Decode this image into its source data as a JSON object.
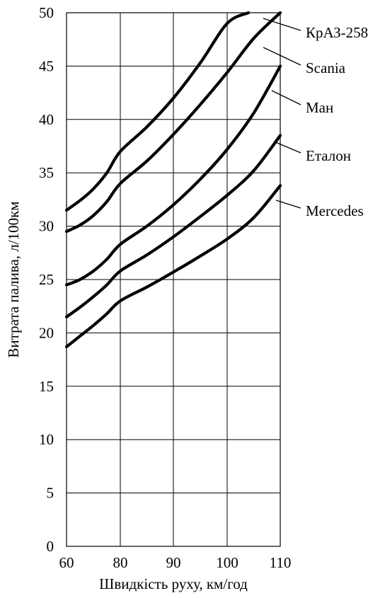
{
  "chart_data": {
    "type": "line",
    "xlabel": "Швидкість руху, км/год",
    "ylabel": "Витрата палива, л/100км",
    "xlim": [
      60,
      110
    ],
    "ylim": [
      0,
      50
    ],
    "x_ticks": [
      "60",
      "80",
      "90",
      "100",
      "110"
    ],
    "y_ticks": [
      "0",
      "5",
      "10",
      "15",
      "20",
      "25",
      "30",
      "35",
      "40",
      "45",
      "50"
    ],
    "grid": true,
    "legend": "inline labels at right",
    "series": [
      {
        "name": "КрАЗ-258",
        "x": [
          60,
          65,
          70,
          75,
          80,
          85,
          90,
          95,
          100,
          104
        ],
        "y": [
          31.5,
          32.4,
          33.5,
          35.0,
          37.0,
          39.3,
          42.0,
          45.3,
          49.0,
          50.0
        ]
      },
      {
        "name": "Scania",
        "x": [
          60,
          65,
          70,
          75,
          80,
          85,
          90,
          95,
          100,
          105,
          110
        ],
        "y": [
          29.5,
          30.1,
          31.0,
          32.3,
          34.0,
          36.1,
          38.6,
          41.4,
          44.4,
          47.6,
          50.0
        ]
      },
      {
        "name": "Ман",
        "x": [
          60,
          65,
          70,
          75,
          80,
          85,
          90,
          95,
          100,
          105,
          110
        ],
        "y": [
          24.5,
          25.0,
          25.8,
          26.9,
          28.3,
          30.0,
          32.0,
          34.4,
          37.2,
          40.6,
          45.0
        ]
      },
      {
        "name": "Еталон",
        "x": [
          60,
          65,
          70,
          75,
          80,
          85,
          90,
          95,
          100,
          105,
          110
        ],
        "y": [
          21.5,
          22.4,
          23.4,
          24.5,
          25.8,
          27.3,
          29.0,
          30.9,
          32.9,
          35.2,
          38.5
        ]
      },
      {
        "name": "Mercedes",
        "x": [
          60,
          65,
          70,
          75,
          80,
          85,
          90,
          95,
          100,
          105,
          110
        ],
        "y": [
          18.7,
          19.7,
          20.7,
          21.8,
          23.0,
          24.3,
          25.7,
          27.2,
          28.8,
          30.8,
          33.8
        ]
      }
    ]
  }
}
